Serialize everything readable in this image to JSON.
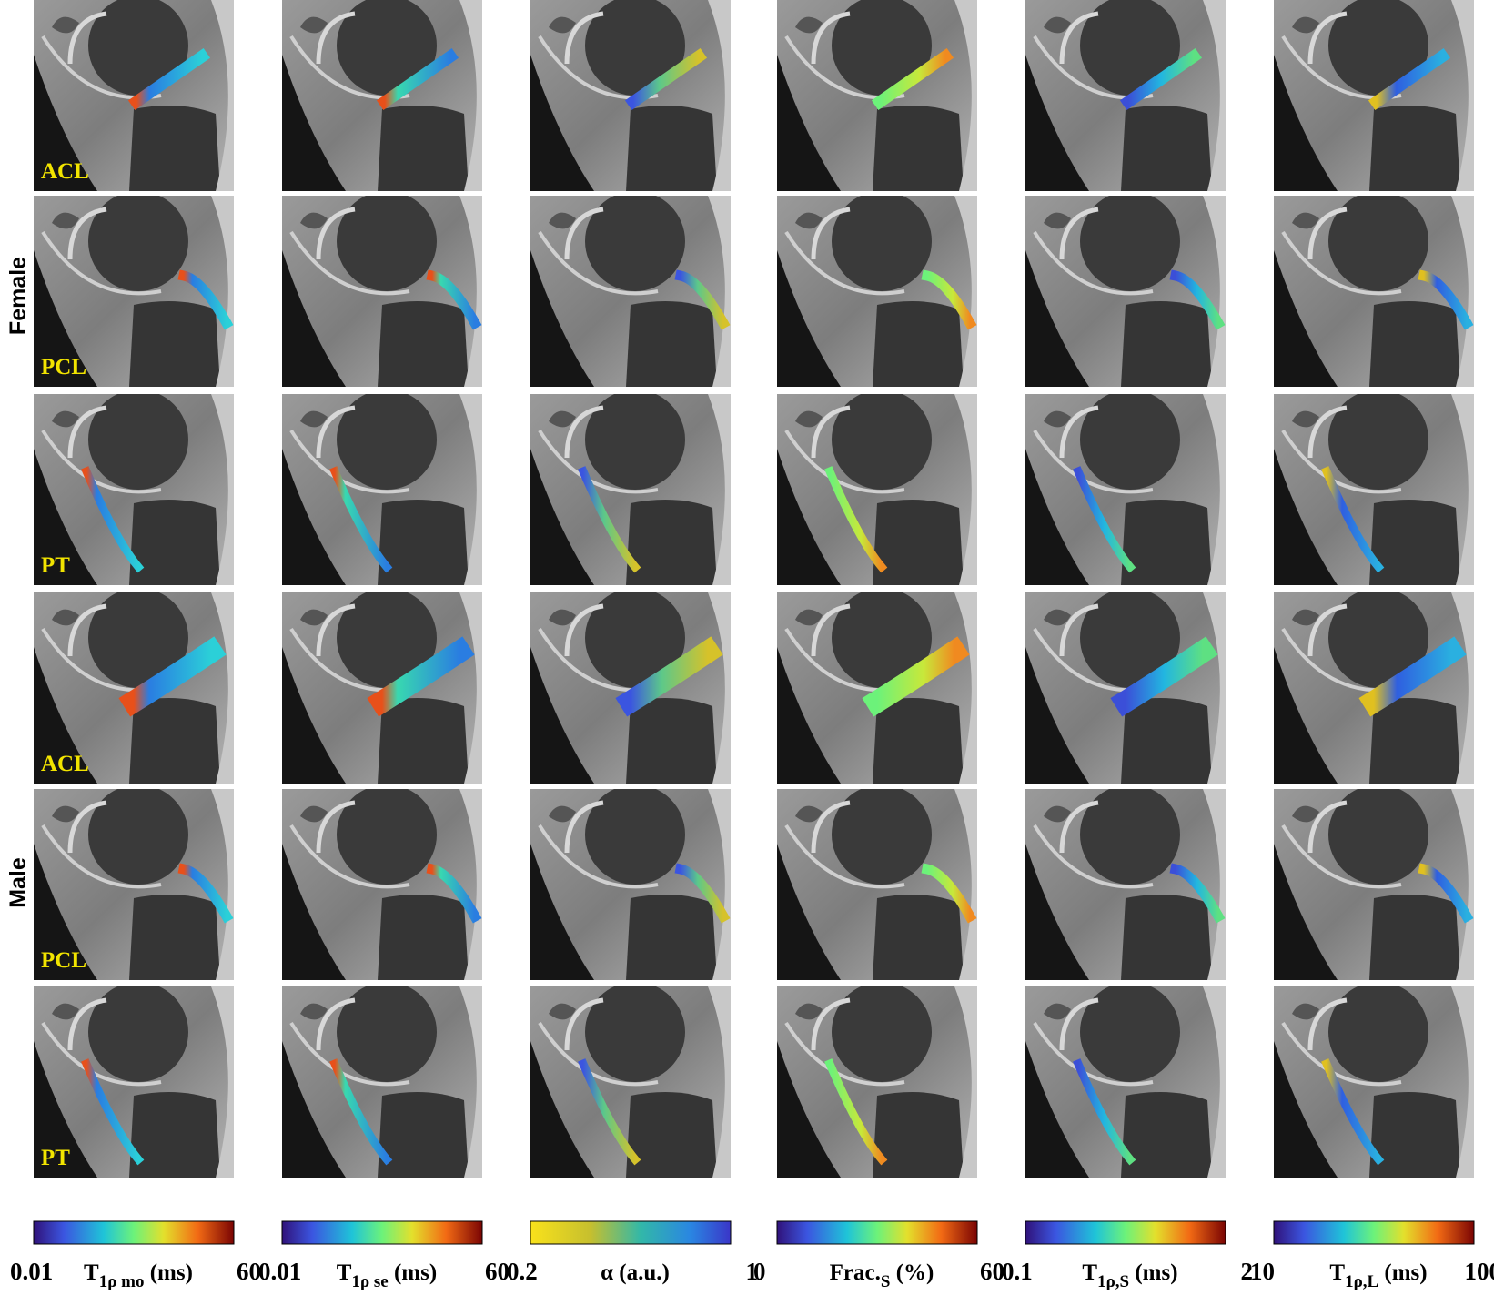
{
  "groups": [
    {
      "label": "Female"
    },
    {
      "label": "Male"
    }
  ],
  "rows": [
    {
      "label": "ACL"
    },
    {
      "label": "PCL"
    },
    {
      "label": "PT"
    },
    {
      "label": "ACL"
    },
    {
      "label": "PCL"
    },
    {
      "label": "PT"
    }
  ],
  "colorbars": [
    {
      "min": 0.01,
      "max": 60,
      "label": {
        "main": "T",
        "sub": "1ρ mo",
        "unit": " (ms)"
      }
    },
    {
      "min": 0.01,
      "max": 60,
      "label": {
        "main": "T",
        "sub": "1ρ se",
        "unit": " (ms)"
      }
    },
    {
      "min": 0.2,
      "max": 1,
      "label": {
        "main": "α (a.u.)"
      }
    },
    {
      "min": 0,
      "max": 60,
      "label": {
        "main": "Frac.",
        "sub": "S",
        "unit": " (%)"
      }
    },
    {
      "min": 0.1,
      "max": 2,
      "label": {
        "main": "T",
        "sub": "1ρ,S",
        "unit": " (ms)"
      }
    },
    {
      "min": 10,
      "max": 100,
      "label": {
        "main": "T",
        "sub": "1ρ,L",
        "unit": " (ms)"
      }
    }
  ]
}
